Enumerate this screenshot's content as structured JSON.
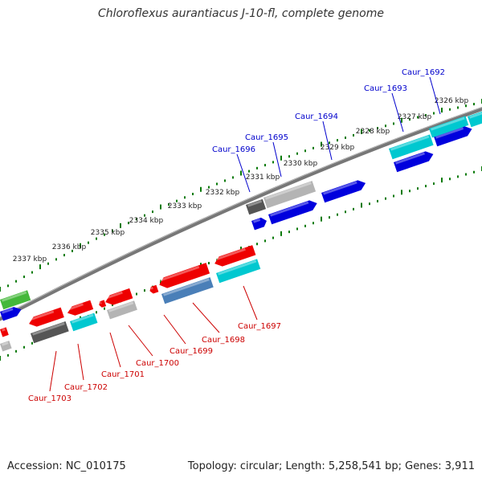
{
  "title": "Chloroflexus aurantiacus J-10-fl, complete genome",
  "footer": {
    "accession": "Accession: NC_010175",
    "topology": "Topology: circular; Length: 5,258,541 bp; Genes: 3,911"
  },
  "colors": {
    "forward_label": "#0000cc",
    "reverse_label": "#cc0000",
    "tick": "#0a7a0a",
    "backbone": "#777777",
    "blue": "#0000dd",
    "red": "#ee0000",
    "cyan": "#00c8d0",
    "gray": "#b4b4b4",
    "dark_gray": "#555555",
    "steel": "#4a7fb8",
    "green": "#44b83a"
  },
  "ticks": [
    {
      "label": "2326 kbp"
    },
    {
      "label": "2327 kbp"
    },
    {
      "label": "2328 kbp"
    },
    {
      "label": "2329 kbp"
    },
    {
      "label": "2330 kbp"
    },
    {
      "label": "2331 kbp"
    },
    {
      "label": "2332 kbp"
    },
    {
      "label": "2333 kbp"
    },
    {
      "label": "2334 kbp"
    },
    {
      "label": "2335 kbp"
    },
    {
      "label": "2336 kbp"
    },
    {
      "label": "2337 kbp"
    }
  ],
  "forward_genes": [
    {
      "label": "Caur_1692"
    },
    {
      "label": "Caur_1693"
    },
    {
      "label": "Caur_1694"
    },
    {
      "label": "Caur_1695"
    },
    {
      "label": "Caur_1696"
    }
  ],
  "reverse_genes": [
    {
      "label": "Caur_1697"
    },
    {
      "label": "Caur_1698"
    },
    {
      "label": "Caur_1699"
    },
    {
      "label": "Caur_1700"
    },
    {
      "label": "Caur_1701"
    },
    {
      "label": "Caur_1702"
    },
    {
      "label": "Caur_1703"
    }
  ]
}
